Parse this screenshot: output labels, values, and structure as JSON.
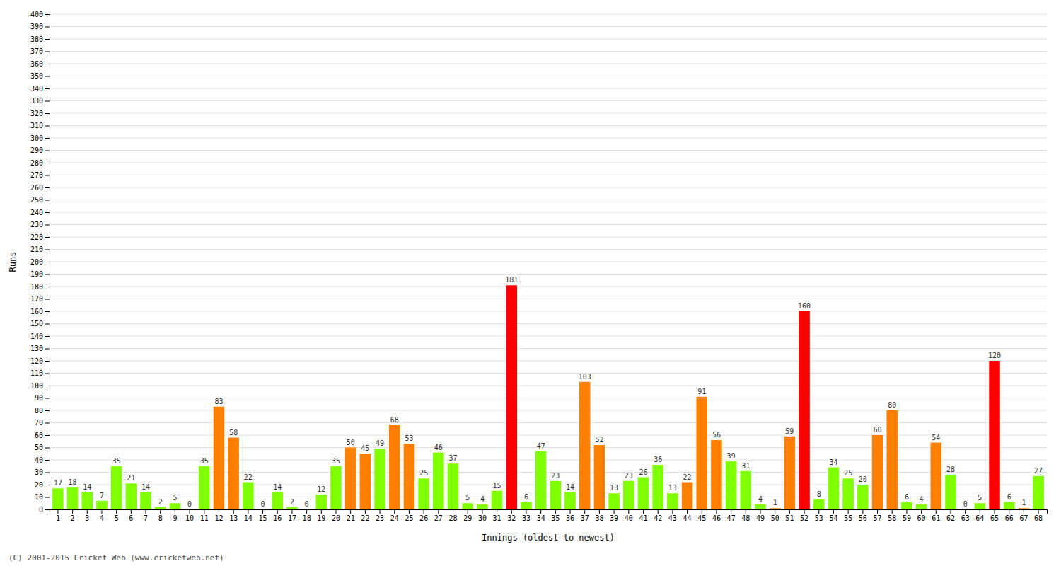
{
  "chart_data": {
    "type": "bar",
    "xlabel": "Innings (oldest to newest)",
    "ylabel": "Runs",
    "annotations": [
      "(C) 2001-2015 Cricket Web (www.cricketweb.net)"
    ],
    "categories": [
      "1",
      "2",
      "3",
      "4",
      "5",
      "6",
      "7",
      "8",
      "9",
      "10",
      "11",
      "12",
      "13",
      "14",
      "15",
      "16",
      "17",
      "18",
      "19",
      "20",
      "21",
      "22",
      "23",
      "24",
      "25",
      "26",
      "27",
      "28",
      "29",
      "30",
      "31",
      "32",
      "33",
      "34",
      "35",
      "36",
      "37",
      "38",
      "39",
      "40",
      "41",
      "42",
      "43",
      "44",
      "45",
      "46",
      "47",
      "48",
      "49",
      "50",
      "51",
      "52",
      "53",
      "54",
      "55",
      "56",
      "57",
      "58",
      "59",
      "60",
      "61",
      "62",
      "63",
      "64",
      "65",
      "66",
      "67",
      "68"
    ],
    "values": [
      17,
      18,
      14,
      7,
      35,
      21,
      14,
      2,
      5,
      0,
      35,
      83,
      58,
      22,
      0,
      14,
      2,
      0,
      12,
      35,
      50,
      45,
      49,
      68,
      53,
      25,
      46,
      37,
      5,
      4,
      15,
      181,
      6,
      47,
      23,
      14,
      103,
      52,
      13,
      23,
      26,
      36,
      13,
      22,
      91,
      56,
      39,
      31,
      4,
      1,
      59,
      160,
      8,
      34,
      25,
      20,
      60,
      80,
      6,
      4,
      54,
      28,
      0,
      5,
      120,
      6,
      1,
      27
    ],
    "colors": [
      "#80ff00",
      "#80ff00",
      "#80ff00",
      "#80ff00",
      "#80ff00",
      "#80ff00",
      "#80ff00",
      "#80ff00",
      "#80ff00",
      "#ff8000",
      "#80ff00",
      "#ff8000",
      "#ff8000",
      "#80ff00",
      "#ff8000",
      "#80ff00",
      "#80ff00",
      "#ff8000",
      "#80ff00",
      "#80ff00",
      "#ff8000",
      "#ff8000",
      "#80ff00",
      "#ff8000",
      "#ff8000",
      "#80ff00",
      "#80ff00",
      "#80ff00",
      "#80ff00",
      "#80ff00",
      "#80ff00",
      "#ff0000",
      "#80ff00",
      "#80ff00",
      "#80ff00",
      "#80ff00",
      "#ff8000",
      "#ff8000",
      "#80ff00",
      "#80ff00",
      "#80ff00",
      "#80ff00",
      "#80ff00",
      "#ff8000",
      "#ff8000",
      "#ff8000",
      "#80ff00",
      "#80ff00",
      "#80ff00",
      "#ff8000",
      "#ff8000",
      "#ff0000",
      "#80ff00",
      "#80ff00",
      "#80ff00",
      "#80ff00",
      "#ff8000",
      "#ff8000",
      "#80ff00",
      "#80ff00",
      "#ff8000",
      "#80ff00",
      "#ff8000",
      "#80ff00",
      "#ff0000",
      "#80ff00",
      "#ff8000",
      "#80ff00"
    ],
    "ylim": [
      0,
      400
    ],
    "yticks": [
      0,
      10,
      20,
      30,
      40,
      50,
      60,
      70,
      80,
      90,
      100,
      110,
      120,
      130,
      140,
      150,
      160,
      170,
      180,
      190,
      200,
      210,
      220,
      230,
      240,
      250,
      260,
      270,
      280,
      290,
      300,
      310,
      320,
      330,
      340,
      350,
      360,
      370,
      380,
      390,
      400
    ],
    "grid": true,
    "data_labels": true
  }
}
